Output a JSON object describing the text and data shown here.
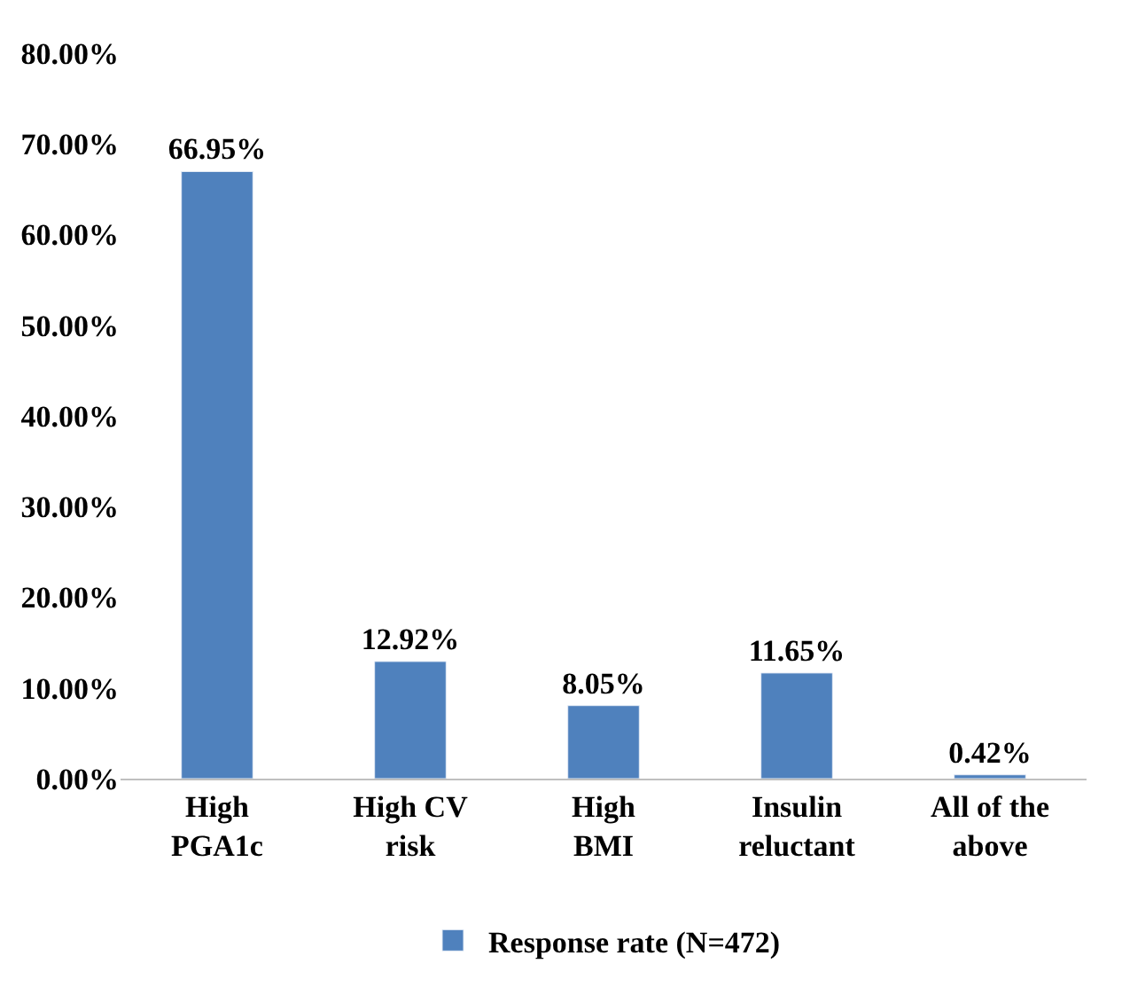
{
  "chart_data": {
    "type": "bar",
    "categories": [
      "High PGA1c",
      "High CV risk",
      "High BMI",
      "Insulin reluctant",
      "All of the above"
    ],
    "series": [
      {
        "name": "Response rate (N=472)",
        "color": "#4f81bd",
        "values": [
          66.95,
          12.92,
          8.05,
          11.65,
          0.42
        ],
        "value_labels": [
          "66.95%",
          "12.92%",
          "8.05%",
          "11.65%",
          "0.42%"
        ]
      }
    ],
    "ylim": [
      0,
      80
    ],
    "yticks": [
      {
        "value": 0,
        "label": "0.00%"
      },
      {
        "value": 10,
        "label": "10.00%"
      },
      {
        "value": 20,
        "label": "20.00%"
      },
      {
        "value": 30,
        "label": "30.00%"
      },
      {
        "value": 40,
        "label": "40.00%"
      },
      {
        "value": 50,
        "label": "50.00%"
      },
      {
        "value": 60,
        "label": "60.00%"
      },
      {
        "value": 70,
        "label": "70.00%"
      },
      {
        "value": 80,
        "label": "80.00%"
      }
    ],
    "legend": "bottom"
  }
}
